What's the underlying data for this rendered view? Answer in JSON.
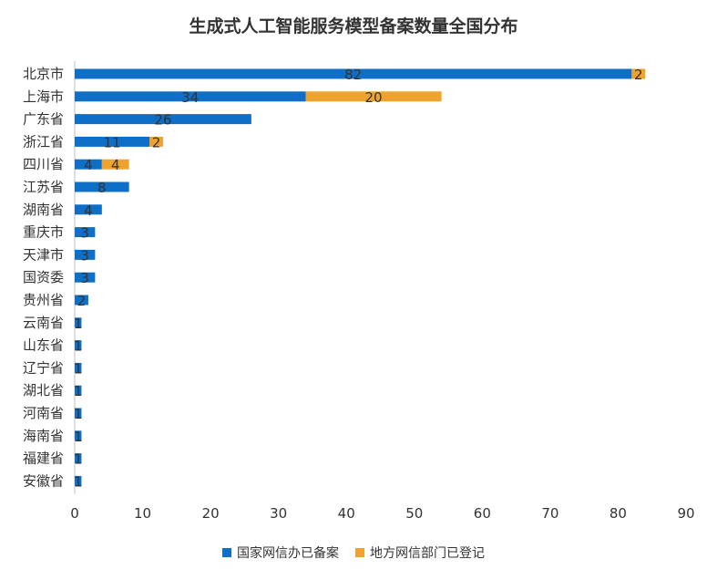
{
  "chart_data": {
    "type": "bar",
    "orientation": "horizontal",
    "stacked": true,
    "title": "生成式人工智能服务模型备案数量全国分布",
    "categories": [
      "北京市",
      "上海市",
      "广东省",
      "浙江省",
      "四川省",
      "江苏省",
      "湖南省",
      "重庆市",
      "天津市",
      "国资委",
      "贵州省",
      "云南省",
      "山东省",
      "辽宁省",
      "湖北省",
      "河南省",
      "海南省",
      "福建省",
      "安徽省"
    ],
    "series": [
      {
        "name": "国家网信办已备案",
        "color": "#0F6FC6",
        "values": [
          82,
          34,
          26,
          11,
          4,
          8,
          4,
          3,
          3,
          3,
          2,
          1,
          1,
          1,
          1,
          1,
          1,
          1,
          1
        ]
      },
      {
        "name": "地方网信部门已登记",
        "color": "#F0A22E",
        "values": [
          2,
          20,
          0,
          2,
          4,
          0,
          0,
          0,
          0,
          0,
          0,
          0,
          0,
          0,
          0,
          0,
          0,
          0,
          0
        ]
      }
    ],
    "xlim": [
      0,
      90
    ],
    "xticks": [
      0,
      10,
      20,
      30,
      40,
      50,
      60,
      70,
      80,
      90
    ],
    "grid": false,
    "legend_position": "bottom"
  }
}
